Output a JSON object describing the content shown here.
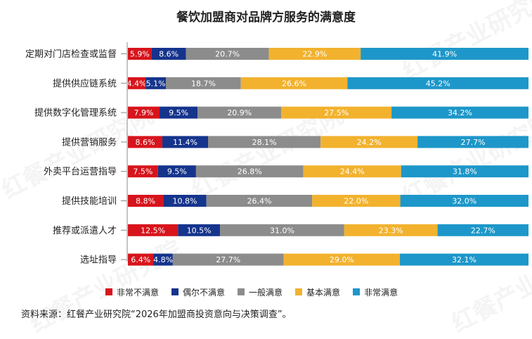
{
  "title": "餐饮加盟商对品牌方服务的满意度",
  "source": "资料来源：红餐产业研究院“2026年加盟商投资意向与决策调查”。",
  "watermark": "红餐产业研究院",
  "chart_data": {
    "type": "bar",
    "orientation": "horizontal",
    "stacked": true,
    "normalized_percent": true,
    "title": "餐饮加盟商对品牌方服务的满意度",
    "categories": [
      "定期对门店检查或监督",
      "提供供应链系统",
      "提供数字化管理系统",
      "提供营销服务",
      "外卖平台运营指导",
      "提供技能培训",
      "推荐或派遣人才",
      "选址指导"
    ],
    "series": [
      {
        "name": "非常不满意",
        "color": "#d7141c",
        "values": [
          5.9,
          4.4,
          7.9,
          8.6,
          7.5,
          8.8,
          12.5,
          6.4
        ]
      },
      {
        "name": "偶尔不满意",
        "color": "#15348c",
        "values": [
          8.6,
          5.1,
          9.5,
          11.4,
          9.5,
          10.8,
          10.5,
          4.8
        ]
      },
      {
        "name": "一般满意",
        "color": "#8c8c8c",
        "values": [
          20.7,
          18.7,
          20.9,
          28.1,
          26.8,
          26.4,
          31.0,
          27.7
        ]
      },
      {
        "name": "基本满意",
        "color": "#f2b22e",
        "values": [
          22.9,
          26.6,
          27.5,
          24.2,
          24.4,
          22.0,
          23.3,
          29.0
        ]
      },
      {
        "name": "非常满意",
        "color": "#1d97c9",
        "values": [
          41.9,
          45.2,
          34.2,
          27.7,
          31.8,
          32.0,
          22.7,
          32.1
        ]
      }
    ],
    "value_suffix": "%",
    "legend_position": "bottom",
    "grid": false
  }
}
